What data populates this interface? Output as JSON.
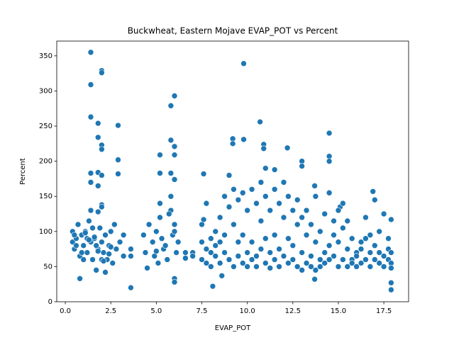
{
  "chart_data": {
    "type": "scatter",
    "title": "Buckwheat, Eastern Mojave EVAP_POT vs Percent",
    "x_label": "EVAP_POT",
    "y_label": "Percent",
    "color": "#1f77b4",
    "xlim": [
      -0.47,
      18.86
    ],
    "ylim": [
      0,
      371
    ],
    "xticks": [
      {
        "value": 0,
        "label": "0.0"
      },
      2.5,
      {
        "value": 5,
        "label": "5.0"
      },
      7.5,
      {
        "value": 10,
        "label": "10.0"
      },
      12.5,
      {
        "value": 15,
        "label": "15.0"
      },
      17.5
    ],
    "yticks": [
      0,
      50,
      100,
      150,
      200,
      250,
      300,
      350
    ],
    "x": [
      1.4,
      1.4,
      1.4,
      2.0,
      2.0,
      1.8,
      1.8,
      2.0,
      2.0,
      2.9,
      2.9,
      1.4,
      1.8,
      2.0,
      1.4,
      1.8,
      2.0,
      2.0,
      1.4,
      1.8,
      2.9,
      0.8,
      3.6,
      5.8,
      6.0,
      5.8,
      6.0,
      6.0,
      5.2,
      5.2,
      5.8,
      6.0,
      6.0,
      6.0,
      9.8,
      10.7,
      9.8,
      9.2,
      9.2,
      10.9,
      10.9,
      12.2,
      14.5,
      14.5,
      14.5,
      7.6,
      7.6,
      8.1,
      11.0,
      11.5,
      13.0,
      13.0,
      13.7,
      15.1,
      16.9,
      17.9,
      17.9,
      17.9,
      13.7,
      8.6,
      0.4,
      0.4,
      0.5,
      0.6,
      0.7,
      0.8,
      0.9,
      1.0,
      1.1,
      1.2,
      1.3,
      1.4,
      1.5,
      1.6,
      1.7,
      1.8,
      1.9,
      2.0,
      2.1,
      2.2,
      2.3,
      2.4,
      2.5,
      2.6,
      2.8,
      3.0,
      3.2,
      0.5,
      0.9,
      1.2,
      1.5,
      1.7,
      2.0,
      2.2,
      2.5,
      3.2,
      1.0,
      1.3,
      1.8,
      2.4,
      0.6,
      1.1,
      1.6,
      2.1,
      2.7,
      3.6,
      3.6,
      4.3,
      4.4,
      4.6,
      4.8,
      5.0,
      5.1,
      5.2,
      5.2,
      5.4,
      5.6,
      5.8,
      5.8,
      5.9,
      6.0,
      6.1,
      6.2,
      4.5,
      4.9,
      5.3,
      5.7,
      6.0,
      5.0,
      5.5,
      6.6,
      6.6,
      7.0,
      7.0,
      7.5,
      7.5,
      7.5,
      7.75,
      7.75,
      7.75,
      8.0,
      8.0,
      8.0,
      8.25,
      8.25,
      8.25,
      8.5,
      8.5,
      8.5,
      8.75,
      8.75,
      8.75,
      9.0,
      9.0,
      9.0,
      9.25,
      9.25,
      9.25,
      9.5,
      9.5,
      9.5,
      9.75,
      9.75,
      9.75,
      10.0,
      10.0,
      10.0,
      10.25,
      10.25,
      10.25,
      10.5,
      10.5,
      10.5,
      10.75,
      10.75,
      10.75,
      11.0,
      11.0,
      11.0,
      11.25,
      11.25,
      11.25,
      11.5,
      11.5,
      11.5,
      11.75,
      11.75,
      11.75,
      12.0,
      12.0,
      12.0,
      12.25,
      12.25,
      12.25,
      12.5,
      12.5,
      12.5,
      12.75,
      12.75,
      12.75,
      13.0,
      13.0,
      13.0,
      13.25,
      13.25,
      13.25,
      13.5,
      13.5,
      13.5,
      13.75,
      13.75,
      13.75,
      14.0,
      14.0,
      14.0,
      14.25,
      14.25,
      14.25,
      14.5,
      14.5,
      14.5,
      14.75,
      14.75,
      14.75,
      15.0,
      15.0,
      15.0,
      15.25,
      15.25,
      15.25,
      15.5,
      15.5,
      15.5,
      15.75,
      15.75,
      15.75,
      16.0,
      16.0,
      16.0,
      16.25,
      16.25,
      16.25,
      16.5,
      16.5,
      16.5,
      16.75,
      16.75,
      16.75,
      17.0,
      17.0,
      17.0,
      17.25,
      17.25,
      17.25,
      17.5,
      17.5,
      17.5,
      17.75,
      17.75,
      17.75,
      17.9,
      17.9,
      17.9
    ],
    "values": [
      355,
      309,
      263,
      329,
      326,
      254,
      234,
      223,
      217,
      251,
      202,
      183,
      184,
      180,
      170,
      165,
      138,
      135,
      130,
      128,
      182,
      33,
      20,
      279,
      293,
      230,
      221,
      209,
      209,
      183,
      183,
      174,
      33,
      28,
      339,
      256,
      231,
      232,
      225,
      224,
      218,
      219,
      240,
      207,
      200,
      182,
      117,
      22,
      190,
      188,
      200,
      193,
      165,
      135,
      157,
      17,
      27,
      117,
      32,
      37,
      85,
      100,
      75,
      90,
      110,
      65,
      95,
      80,
      100,
      70,
      115,
      85,
      60,
      90,
      45,
      75,
      105,
      85,
      70,
      95,
      60,
      80,
      100,
      55,
      75,
      85,
      65,
      95,
      70,
      90,
      105,
      80,
      60,
      42,
      78,
      95,
      60,
      88,
      72,
      68,
      80,
      98,
      92,
      58,
      110,
      75,
      65,
      95,
      70,
      110,
      85,
      100,
      55,
      140,
      120,
      75,
      60,
      150,
      130,
      95,
      110,
      70,
      85,
      48,
      65,
      90,
      125,
      100,
      72,
      80,
      70,
      62,
      70,
      65,
      60,
      85,
      110,
      75,
      55,
      140,
      90,
      50,
      70,
      65,
      100,
      80,
      120,
      55,
      85,
      150,
      70,
      95,
      135,
      60,
      180,
      110,
      50,
      160,
      145,
      85,
      65,
      155,
      95,
      55,
      70,
      130,
      50,
      160,
      85,
      60,
      65,
      140,
      50,
      115,
      75,
      170,
      55,
      150,
      90,
      130,
      70,
      48,
      160,
      95,
      60,
      75,
      140,
      50,
      120,
      65,
      170,
      90,
      150,
      55,
      60,
      130,
      80,
      110,
      50,
      145,
      70,
      120,
      45,
      55,
      95,
      130,
      65,
      50,
      110,
      45,
      85,
      150,
      100,
      60,
      50,
      125,
      70,
      55,
      80,
      155,
      60,
      115,
      65,
      95,
      130,
      50,
      85,
      105,
      60,
      140,
      75,
      115,
      50,
      60,
      90,
      55,
      70,
      50,
      65,
      85,
      55,
      75,
      120,
      60,
      90,
      95,
      50,
      70,
      145,
      60,
      80,
      100,
      55,
      70,
      125,
      65,
      50,
      90,
      60,
      75,
      55,
      70,
      48
    ]
  }
}
